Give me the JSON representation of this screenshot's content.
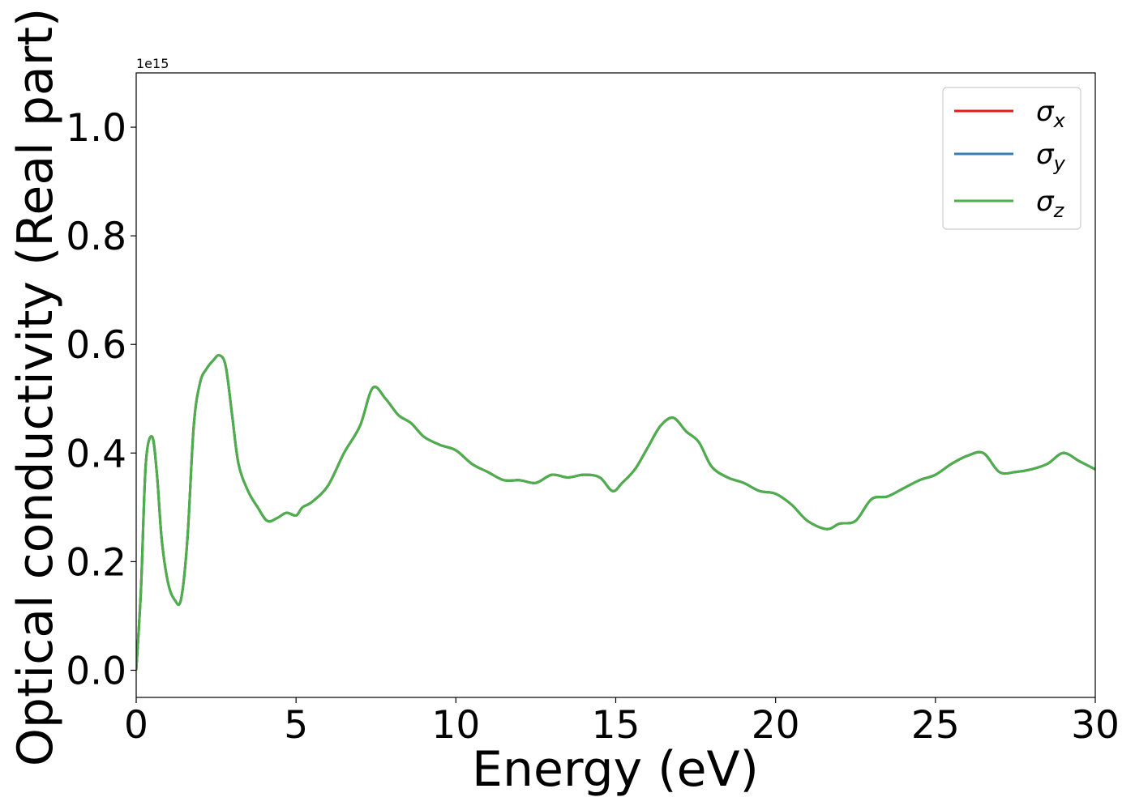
{
  "chart_data": {
    "type": "line",
    "xlabel": "Energy (eV)",
    "ylabel": "Optical conductivity (Real part)",
    "y_offset_text": "1e15",
    "xlim": [
      0,
      30
    ],
    "ylim": [
      -0.05,
      1.1
    ],
    "y_scale_factor": 1000000000000000.0,
    "x_ticks": [
      0,
      5,
      10,
      15,
      20,
      25,
      30
    ],
    "x_tick_labels": [
      "0",
      "5",
      "10",
      "15",
      "20",
      "25",
      "30"
    ],
    "y_ticks": [
      0.0,
      0.2,
      0.4,
      0.6,
      0.8,
      1.0
    ],
    "y_tick_labels": [
      "0.0",
      "0.2",
      "0.4",
      "0.6",
      "0.8",
      "1.0"
    ],
    "grid": false,
    "legend_position": "top-right",
    "x": [
      0,
      0.15,
      0.3,
      0.5,
      0.65,
      0.8,
      1.0,
      1.2,
      1.4,
      1.6,
      1.8,
      2.0,
      2.2,
      2.4,
      2.6,
      2.8,
      3.0,
      3.2,
      3.5,
      3.8,
      4.1,
      4.4,
      4.7,
      5.0,
      5.2,
      5.5,
      6.0,
      6.5,
      7.0,
      7.4,
      7.8,
      8.2,
      8.6,
      9.0,
      9.5,
      10.0,
      10.5,
      11.0,
      11.5,
      12.0,
      12.5,
      13.0,
      13.5,
      14.0,
      14.5,
      14.9,
      15.2,
      15.6,
      16.0,
      16.4,
      16.8,
      17.2,
      17.6,
      18.0,
      18.5,
      19.0,
      19.5,
      20.0,
      20.5,
      21.0,
      21.6,
      22.0,
      22.5,
      23.0,
      23.5,
      24.0,
      24.5,
      25.0,
      25.5,
      26.0,
      26.5,
      27.0,
      27.5,
      28.0,
      28.5,
      29.0,
      29.5,
      30.0
    ],
    "series": [
      {
        "name": "σx",
        "color": "#e41a1c",
        "values": [
          0.0,
          0.15,
          0.38,
          0.43,
          0.36,
          0.24,
          0.16,
          0.13,
          0.13,
          0.24,
          0.45,
          0.53,
          0.555,
          0.57,
          0.58,
          0.56,
          0.47,
          0.38,
          0.33,
          0.3,
          0.275,
          0.28,
          0.29,
          0.285,
          0.3,
          0.31,
          0.34,
          0.4,
          0.45,
          0.52,
          0.5,
          0.47,
          0.455,
          0.43,
          0.415,
          0.405,
          0.38,
          0.365,
          0.35,
          0.35,
          0.345,
          0.36,
          0.355,
          0.36,
          0.355,
          0.33,
          0.345,
          0.37,
          0.41,
          0.45,
          0.465,
          0.44,
          0.42,
          0.375,
          0.355,
          0.345,
          0.33,
          0.325,
          0.305,
          0.275,
          0.26,
          0.27,
          0.275,
          0.315,
          0.32,
          0.335,
          0.35,
          0.36,
          0.38,
          0.395,
          0.4,
          0.365,
          0.365,
          0.37,
          0.38,
          0.4,
          0.385,
          0.37
        ]
      },
      {
        "name": "σy",
        "color": "#377eb8",
        "values": [
          0.0,
          0.15,
          0.38,
          0.43,
          0.36,
          0.24,
          0.16,
          0.13,
          0.13,
          0.24,
          0.45,
          0.53,
          0.555,
          0.57,
          0.58,
          0.56,
          0.47,
          0.38,
          0.33,
          0.3,
          0.275,
          0.28,
          0.29,
          0.285,
          0.3,
          0.31,
          0.34,
          0.4,
          0.45,
          0.52,
          0.5,
          0.47,
          0.455,
          0.43,
          0.415,
          0.405,
          0.38,
          0.365,
          0.35,
          0.35,
          0.345,
          0.36,
          0.355,
          0.36,
          0.355,
          0.33,
          0.345,
          0.37,
          0.41,
          0.45,
          0.465,
          0.44,
          0.42,
          0.375,
          0.355,
          0.345,
          0.33,
          0.325,
          0.305,
          0.275,
          0.26,
          0.27,
          0.275,
          0.315,
          0.32,
          0.335,
          0.35,
          0.36,
          0.38,
          0.395,
          0.4,
          0.365,
          0.365,
          0.37,
          0.38,
          0.4,
          0.385,
          0.37
        ]
      },
      {
        "name": "σz",
        "color": "#4daf4a",
        "values": [
          0.0,
          0.15,
          0.38,
          0.43,
          0.36,
          0.24,
          0.16,
          0.13,
          0.13,
          0.24,
          0.45,
          0.53,
          0.555,
          0.57,
          0.58,
          0.56,
          0.47,
          0.38,
          0.33,
          0.3,
          0.275,
          0.28,
          0.29,
          0.285,
          0.3,
          0.31,
          0.34,
          0.4,
          0.45,
          0.52,
          0.5,
          0.47,
          0.455,
          0.43,
          0.415,
          0.405,
          0.38,
          0.365,
          0.35,
          0.35,
          0.345,
          0.36,
          0.355,
          0.36,
          0.355,
          0.33,
          0.345,
          0.37,
          0.41,
          0.45,
          0.465,
          0.44,
          0.42,
          0.375,
          0.355,
          0.345,
          0.33,
          0.325,
          0.305,
          0.275,
          0.26,
          0.27,
          0.275,
          0.315,
          0.32,
          0.335,
          0.35,
          0.36,
          0.38,
          0.395,
          0.4,
          0.365,
          0.365,
          0.37,
          0.38,
          0.4,
          0.385,
          0.37
        ]
      }
    ],
    "legend": [
      {
        "symbol": "σ",
        "subscript": "x"
      },
      {
        "symbol": "σ",
        "subscript": "y"
      },
      {
        "symbol": "σ",
        "subscript": "z"
      }
    ]
  }
}
